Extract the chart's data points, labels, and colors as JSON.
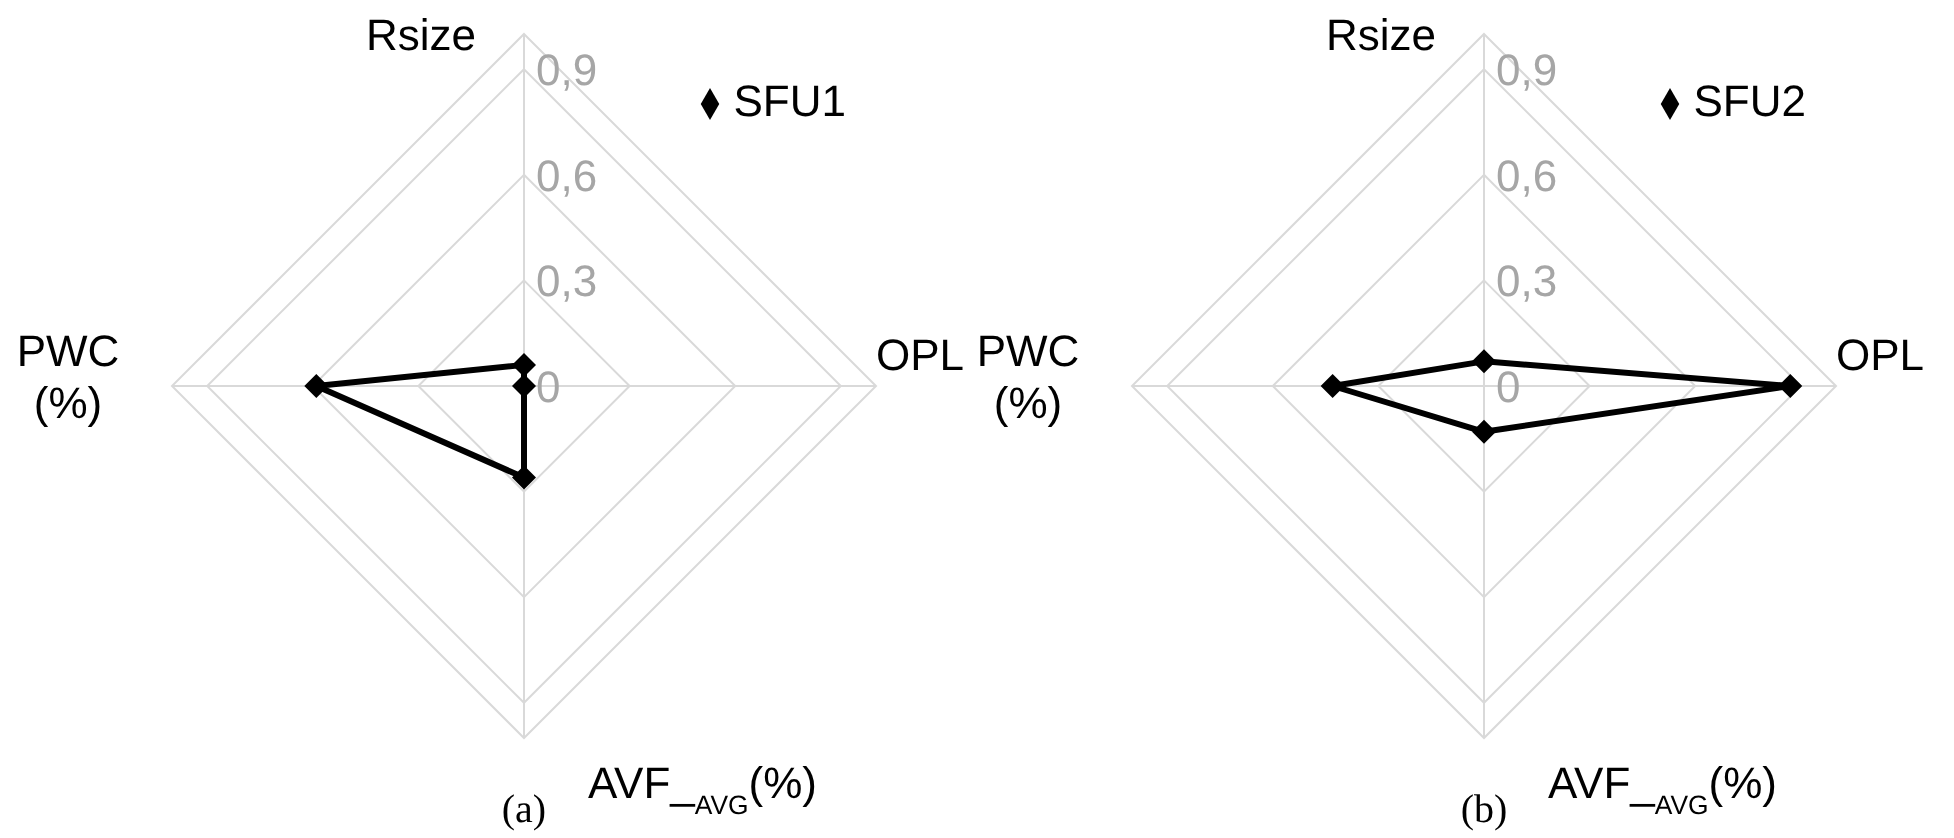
{
  "chart_data": [
    {
      "type": "radar",
      "categories": [
        "Rsize",
        "OPL",
        "AVF_$_{AVG}$(%)",
        "PWC\n(%)"
      ],
      "series": [
        {
          "name": "SFU1",
          "color": "#000000",
          "values": [
            0.06,
            0,
            0.26,
            0.59
          ]
        }
      ],
      "ylim": [
        0,
        1
      ],
      "yticks": [
        0,
        {
          "value": 0.3,
          "label": "0,3"
        },
        {
          "value": 0.6,
          "label": "0,6"
        },
        {
          "value": 0.9,
          "label": "0,9"
        }
      ],
      "grid": true,
      "legend": "top right",
      "marker": "diamond",
      "line_style": "solid",
      "annotations": [
        "(a)"
      ]
    },
    {
      "type": "radar",
      "categories": [
        "Rsize",
        "OPL",
        "AVF_$_{AVG}$(%)",
        "PWC\n(%)"
      ],
      "series": [
        {
          "name": "SFU2",
          "color": "#000000",
          "values": [
            0.07,
            0.87,
            0.13,
            0.43
          ]
        }
      ],
      "ylim": [
        0,
        1
      ],
      "yticks": [
        0,
        {
          "value": 0.3,
          "label": "0,3"
        },
        {
          "value": 0.6,
          "label": "0,6"
        },
        {
          "value": 0.9,
          "label": "0,9"
        }
      ],
      "grid": true,
      "legend": "top right",
      "marker": "diamond",
      "line_style": "solid",
      "annotations": [
        "(b)"
      ]
    }
  ]
}
